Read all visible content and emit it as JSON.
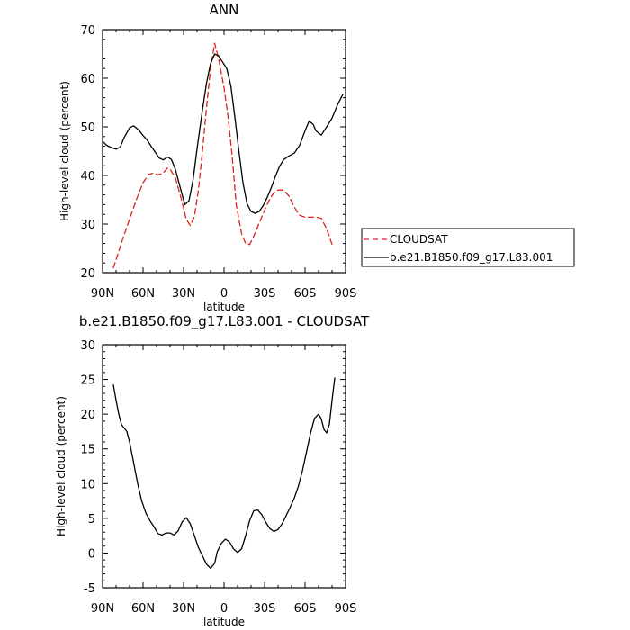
{
  "chart_data": [
    {
      "type": "line",
      "title": "ANN",
      "xlabel": "latitude",
      "ylabel": "High-level cloud (percent)",
      "xlim": [
        -90,
        90
      ],
      "ylim": [
        20,
        70
      ],
      "x_ticks": [
        -90,
        -60,
        -30,
        0,
        30,
        60,
        90
      ],
      "x_tick_labels": [
        "90N",
        "60N",
        "30N",
        "0",
        "30S",
        "60S",
        "90S"
      ],
      "y_ticks": [
        20,
        30,
        40,
        50,
        60,
        70
      ],
      "y_tick_labels": [
        "20",
        "30",
        "40",
        "50",
        "60",
        "70"
      ],
      "legend_position": "right",
      "series": [
        {
          "name": "CLOUDSAT",
          "color": "#e0201b",
          "dash": "dashed",
          "x": [
            -82,
            -79,
            -75,
            -70,
            -65,
            -60,
            -56,
            -52,
            -49,
            -45,
            -42,
            -40,
            -36,
            -32,
            -28,
            -25,
            -22,
            -19,
            -16,
            -13,
            -10,
            -7,
            -4,
            0,
            3,
            6,
            9,
            13,
            16,
            19,
            22,
            25,
            28,
            31,
            34,
            37,
            40,
            44,
            48,
            52,
            56,
            60,
            64,
            68,
            72,
            76,
            80
          ],
          "y": [
            21,
            23.5,
            27,
            31,
            35,
            38.5,
            40.2,
            40.5,
            40.1,
            40.5,
            41.5,
            41.3,
            39.5,
            35.5,
            31,
            29.7,
            31.5,
            37,
            45,
            54,
            62,
            67.2,
            64,
            58,
            52,
            44,
            34,
            28,
            26,
            25.8,
            27.5,
            29.5,
            31.5,
            33.5,
            35.2,
            36.5,
            37,
            37,
            35.8,
            33.5,
            31.8,
            31.4,
            31.4,
            31.4,
            31.2,
            29,
            25.8
          ]
        },
        {
          "name": "b.e21.B1850.f09_g17.L83.001",
          "color": "#000000",
          "dash": "solid",
          "x": [
            -90,
            -87,
            -84,
            -80,
            -77,
            -74,
            -70,
            -67,
            -63,
            -60,
            -57,
            -54,
            -51,
            -48,
            -45,
            -42,
            -39,
            -36,
            -32,
            -29,
            -26,
            -23,
            -20,
            -16,
            -13,
            -10,
            -7,
            -4,
            -1,
            2,
            5,
            8,
            11,
            14,
            17,
            20,
            23,
            26,
            29,
            32,
            35,
            38,
            41,
            44,
            48,
            52,
            56,
            60,
            63,
            66,
            68,
            72,
            76,
            80,
            84,
            88
          ],
          "y": [
            47,
            46.2,
            45.8,
            45.4,
            45.8,
            47.8,
            49.8,
            50.2,
            49.3,
            48.2,
            47.3,
            46,
            44.8,
            43.6,
            43.2,
            43.8,
            43.3,
            41.2,
            37,
            34,
            34.8,
            39,
            45.5,
            53.5,
            59,
            63,
            65,
            64.6,
            63.3,
            62,
            58.5,
            52,
            45,
            38.5,
            34.2,
            32.6,
            32.2,
            32.6,
            33.8,
            35.5,
            37.5,
            39.8,
            41.8,
            43.2,
            44,
            44.6,
            46.2,
            49.2,
            51.2,
            50.5,
            49.2,
            48.3,
            50,
            51.8,
            54.5,
            56.7
          ]
        }
      ]
    },
    {
      "type": "line",
      "title": "b.e21.B1850.f09_g17.L83.001 - CLOUDSAT",
      "xlabel": "latitude",
      "ylabel": "High-level cloud (percent)",
      "xlim": [
        -90,
        90
      ],
      "ylim": [
        -5,
        30
      ],
      "x_ticks": [
        -90,
        -60,
        -30,
        0,
        30,
        60,
        90
      ],
      "x_tick_labels": [
        "90N",
        "60N",
        "30N",
        "0",
        "30S",
        "60S",
        "90S"
      ],
      "y_ticks": [
        -5,
        0,
        5,
        10,
        15,
        20,
        25,
        30
      ],
      "y_tick_labels": [
        "-5",
        "0",
        "5",
        "10",
        "15",
        "20",
        "25",
        "30"
      ],
      "series": [
        {
          "color": "#000000",
          "dash": "solid",
          "x": [
            -82,
            -80,
            -78,
            -76,
            -74,
            -72,
            -70,
            -67,
            -64,
            -61,
            -58,
            -55,
            -52,
            -49,
            -46,
            -43,
            -40,
            -37,
            -34,
            -31,
            -28,
            -25,
            -22,
            -19,
            -16,
            -13,
            -10,
            -7,
            -5,
            -2,
            1,
            4,
            7,
            10,
            13,
            16,
            19,
            22,
            25,
            28,
            31,
            34,
            37,
            40,
            43,
            46,
            49,
            52,
            55,
            58,
            61,
            64,
            67,
            70,
            72,
            74,
            76,
            78,
            80,
            82
          ],
          "y": [
            24.2,
            22,
            20,
            18.5,
            18,
            17.5,
            16,
            13,
            10,
            7.5,
            5.8,
            4.7,
            3.8,
            2.8,
            2.6,
            2.9,
            2.9,
            2.6,
            3.2,
            4.5,
            5.1,
            4.2,
            2.5,
            0.8,
            -0.4,
            -1.6,
            -2.2,
            -1.5,
            0.2,
            1.4,
            2,
            1.6,
            0.6,
            0.1,
            0.6,
            2.5,
            4.7,
            6.1,
            6.2,
            5.5,
            4.4,
            3.5,
            3.1,
            3.4,
            4.2,
            5.4,
            6.6,
            7.9,
            9.6,
            11.8,
            14.5,
            17.2,
            19.4,
            20,
            19.3,
            17.8,
            17.3,
            18.5,
            22,
            25.2
          ]
        }
      ]
    }
  ]
}
